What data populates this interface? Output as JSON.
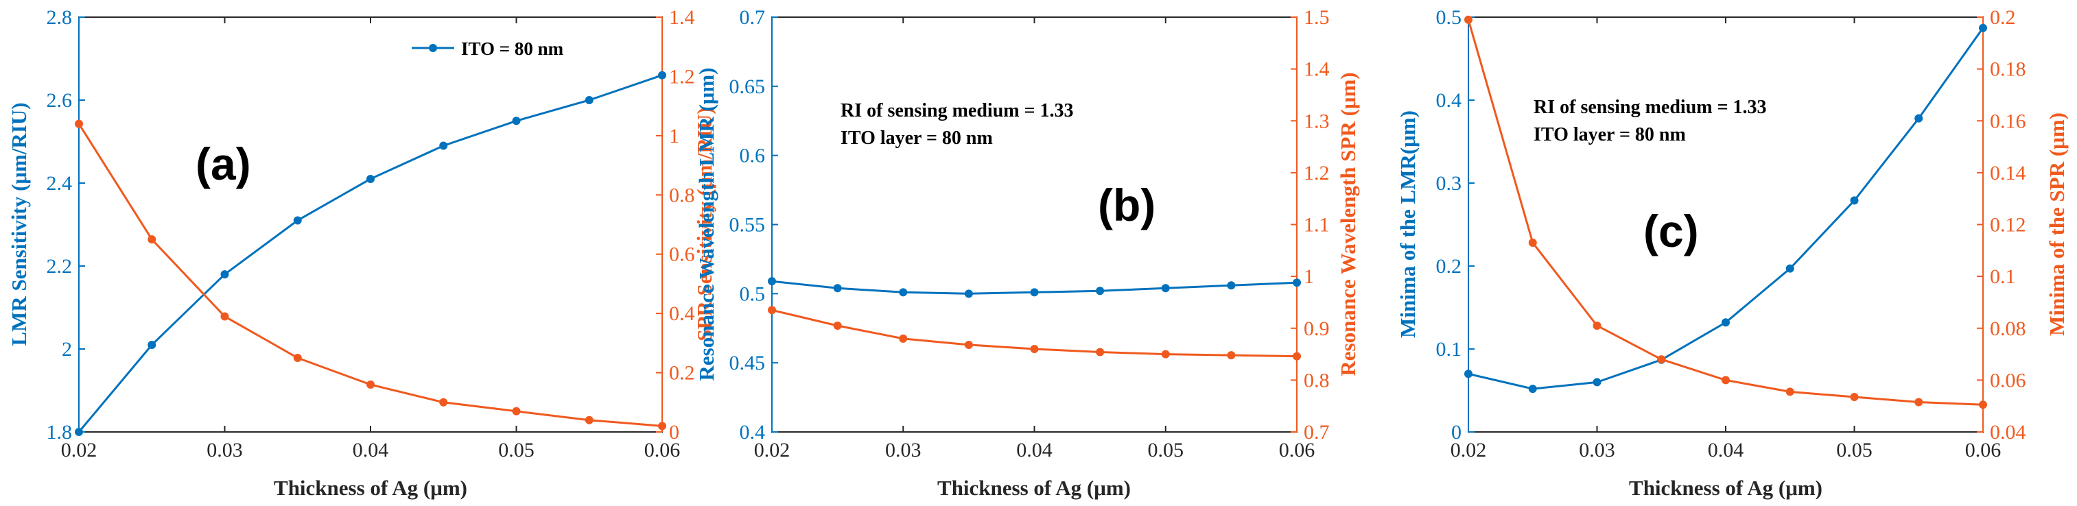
{
  "colors": {
    "left": "#0072BD",
    "right": "#F0591E",
    "axis": "#262626",
    "note": "#000000"
  },
  "chart_data": [
    {
      "type": "line",
      "panel_label": "(a)",
      "xlabel": "Thickness of Ag (μm)",
      "ylabel_left": "LMR Sensitivity (μm/RIU)",
      "ylabel_right": "SPR Sensitivity (μm/RIU)",
      "xlim": [
        0.02,
        0.06
      ],
      "xticks": [
        "0.02",
        "0.03",
        "0.04",
        "0.05",
        "0.06"
      ],
      "ylim_left": [
        1.8,
        2.8
      ],
      "yticks_left": [
        "1.8",
        "2",
        "2.2",
        "2.4",
        "2.6",
        "2.8"
      ],
      "ylim_right": [
        0,
        1.4
      ],
      "yticks_right": [
        "0",
        "0.2",
        "0.4",
        "0.6",
        "0.8",
        "1",
        "1.2",
        "1.4"
      ],
      "x": [
        0.02,
        0.025,
        0.03,
        0.035,
        0.04,
        0.045,
        0.05,
        0.055,
        0.06
      ],
      "series": [
        {
          "name": "LMR",
          "axis": "left",
          "markers": true,
          "values": [
            1.8,
            2.01,
            2.18,
            2.31,
            2.41,
            2.49,
            2.55,
            2.6,
            2.66
          ]
        },
        {
          "name": "SPR",
          "axis": "right",
          "markers": true,
          "values": [
            1.04,
            0.65,
            0.39,
            0.25,
            0.16,
            0.1,
            0.07,
            0.04,
            0.02
          ]
        }
      ],
      "legend": {
        "label": "ITO = 80 nm",
        "placement": "top-right"
      },
      "annotations": []
    },
    {
      "type": "line",
      "panel_label": "(b)",
      "xlabel": "Thickness of Ag (μm)",
      "ylabel_left": "Resonance Wavelength LMR (μm)",
      "ylabel_right": "Resonance Wavelength SPR (μm)",
      "xlim": [
        0.02,
        0.06
      ],
      "xticks": [
        "0.02",
        "0.03",
        "0.04",
        "0.05",
        "0.06"
      ],
      "ylim_left": [
        0.4,
        0.7
      ],
      "yticks_left": [
        "0.4",
        "0.45",
        "0.5",
        "0.55",
        "0.6",
        "0.65",
        "0.7"
      ],
      "ylim_right": [
        0.7,
        1.5
      ],
      "yticks_right": [
        "0.7",
        "0.8",
        "0.9",
        "1",
        "1.1",
        "1.2",
        "1.3",
        "1.4",
        "1.5"
      ],
      "x": [
        0.02,
        0.025,
        0.03,
        0.035,
        0.04,
        0.045,
        0.05,
        0.055,
        0.06
      ],
      "series": [
        {
          "name": "LMR",
          "axis": "left",
          "markers": true,
          "values": [
            0.509,
            0.504,
            0.501,
            0.5,
            0.501,
            0.502,
            0.504,
            0.506,
            0.508
          ]
        },
        {
          "name": "SPR",
          "axis": "right",
          "markers": true,
          "values": [
            0.935,
            0.905,
            0.88,
            0.868,
            0.86,
            0.854,
            0.85,
            0.848,
            0.846
          ]
        }
      ],
      "legend": null,
      "annotations": [
        "RI of sensing medium = 1.33",
        "ITO layer = 80 nm"
      ]
    },
    {
      "type": "line",
      "panel_label": "(c)",
      "xlabel": "Thickness of Ag (μm)",
      "ylabel_left": "Minima of the LMR(μm)",
      "ylabel_right": "Minima of the SPR (μm)",
      "xlim": [
        0.02,
        0.06
      ],
      "xticks": [
        "0.02",
        "0.03",
        "0.04",
        "0.05",
        "0.06"
      ],
      "ylim_left": [
        0,
        0.5
      ],
      "yticks_left": [
        "0",
        "0.1",
        "0.2",
        "0.3",
        "0.4",
        "0.5"
      ],
      "ylim_right": [
        0.04,
        0.2
      ],
      "yticks_right": [
        "0.04",
        "0.06",
        "0.08",
        "0.1",
        "0.12",
        "0.14",
        "0.16",
        "0.18",
        "0.2"
      ],
      "x": [
        0.02,
        0.025,
        0.03,
        0.035,
        0.04,
        0.045,
        0.05,
        0.055,
        0.06
      ],
      "series": [
        {
          "name": "LMR",
          "axis": "left",
          "markers": true,
          "values": [
            0.07,
            0.052,
            0.06,
            0.087,
            0.132,
            0.197,
            0.279,
            0.378,
            0.487
          ]
        },
        {
          "name": "SPR",
          "axis": "right",
          "markers": true,
          "values": [
            0.199,
            0.113,
            0.081,
            0.068,
            0.06,
            0.0555,
            0.0535,
            0.0515,
            0.0505
          ]
        }
      ],
      "legend": null,
      "annotations": [
        "RI of sensing medium = 1.33",
        "ITO layer = 80 nm"
      ]
    }
  ]
}
